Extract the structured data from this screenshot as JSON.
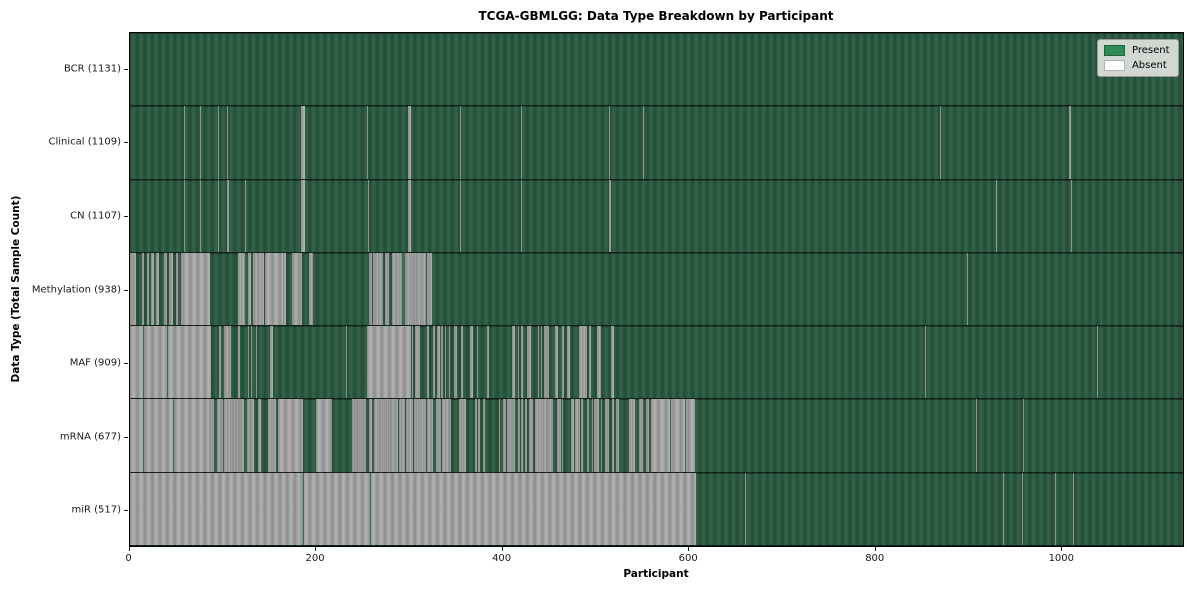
{
  "chart_data": {
    "type": "heatmap",
    "title": "TCGA-GBMLGG: Data Type Breakdown by Participant",
    "xlabel": "Participant",
    "ylabel": "Data Type (Total Sample Count)",
    "xlim": [
      0,
      1131
    ],
    "x_ticks": [
      0,
      200,
      400,
      600,
      800,
      1000
    ],
    "legend": [
      "Present",
      "Absent"
    ],
    "colors": {
      "present": "#2e8b57",
      "present_stripe_dark": "#224c36",
      "present_stripe_light": "#35654a",
      "absent": "#ffffff",
      "absent_stripe_dark": "#8d8d8d",
      "absent_stripe_light": "#b4b4b4",
      "legend_bg": "#dadeda"
    },
    "rows": [
      {
        "label": "BCR (1131)",
        "name": "BCR",
        "count": 1131,
        "absent": [],
        "mixed": [],
        "present_overlay": []
      },
      {
        "label": "Clinical (1109)",
        "name": "Clinical",
        "count": 1109,
        "absent": [
          [
            59,
            60
          ],
          [
            76,
            77
          ],
          [
            95,
            96
          ],
          [
            105,
            106
          ],
          [
            184,
            188
          ],
          [
            255,
            256
          ],
          [
            299,
            302
          ],
          [
            355,
            356
          ],
          [
            421,
            422
          ],
          [
            515,
            516
          ],
          [
            551,
            553
          ],
          [
            871,
            872
          ],
          [
            1009,
            1011
          ]
        ],
        "mixed": [],
        "present_overlay": []
      },
      {
        "label": "CN (1107)",
        "name": "CN",
        "count": 1107,
        "absent": [
          [
            59,
            60
          ],
          [
            76,
            77
          ],
          [
            95,
            96
          ],
          [
            105,
            107
          ],
          [
            124,
            125
          ],
          [
            184,
            188
          ],
          [
            256,
            257
          ],
          [
            299,
            302
          ],
          [
            355,
            356
          ],
          [
            421,
            422
          ],
          [
            515,
            517
          ],
          [
            931,
            932
          ],
          [
            1011,
            1012
          ]
        ],
        "mixed": [],
        "present_overlay": []
      },
      {
        "label": "Methylation (938)",
        "name": "Methylation",
        "count": 938,
        "absent": [
          [
            57,
            87
          ],
          [
            145,
            165
          ],
          [
            175,
            185
          ],
          [
            900,
            901
          ]
        ],
        "mixed": [
          [
            0,
            57,
            0.55
          ],
          [
            87,
            117,
            0.25
          ],
          [
            117,
            145,
            0.65
          ],
          [
            165,
            197,
            0.4
          ],
          [
            257,
            325,
            0.85
          ]
        ],
        "present_overlay": [
          [
            293,
            296
          ]
        ]
      },
      {
        "label": "MAF (909)",
        "name": "MAF",
        "count": 909,
        "absent": [
          [
            0,
            88
          ],
          [
            255,
            302
          ],
          [
            753,
            754
          ],
          [
            854,
            855
          ],
          [
            1039,
            1040
          ]
        ],
        "mixed": [
          [
            88,
            155,
            0.35
          ],
          [
            155,
            245,
            0.12
          ],
          [
            302,
            345,
            0.5
          ],
          [
            345,
            420,
            0.25
          ],
          [
            420,
            500,
            0.4
          ],
          [
            500,
            565,
            0.1
          ]
        ],
        "present_overlay": [
          [
            15,
            16
          ],
          [
            40,
            41
          ]
        ]
      },
      {
        "label": "mRNA (677)",
        "name": "mRNA",
        "count": 677,
        "absent": [
          [
            0,
            85
          ],
          [
            160,
            186
          ],
          [
            200,
            218
          ],
          [
            560,
            607
          ],
          [
            623,
            624
          ],
          [
            909,
            910
          ],
          [
            960,
            961
          ],
          [
            1014,
            1015
          ],
          [
            1101,
            1102
          ]
        ],
        "mixed": [
          [
            85,
            160,
            0.55
          ],
          [
            237,
            345,
            0.78
          ],
          [
            345,
            395,
            0.5
          ],
          [
            395,
            455,
            0.75
          ],
          [
            455,
            560,
            0.55
          ]
        ],
        "present_overlay": [
          [
            15,
            16
          ],
          [
            47,
            48
          ],
          [
            580,
            581
          ],
          [
            597,
            598
          ]
        ]
      },
      {
        "label": "miR (517)",
        "name": "miR",
        "count": 517,
        "absent": [
          [
            0,
            608
          ],
          [
            661,
            662
          ],
          [
            710,
            711
          ],
          [
            938,
            939
          ],
          [
            959,
            960
          ],
          [
            994,
            995
          ],
          [
            1013,
            1014
          ]
        ],
        "mixed": [],
        "present_overlay": [
          [
            186,
            187
          ],
          [
            258,
            259
          ]
        ]
      }
    ]
  }
}
